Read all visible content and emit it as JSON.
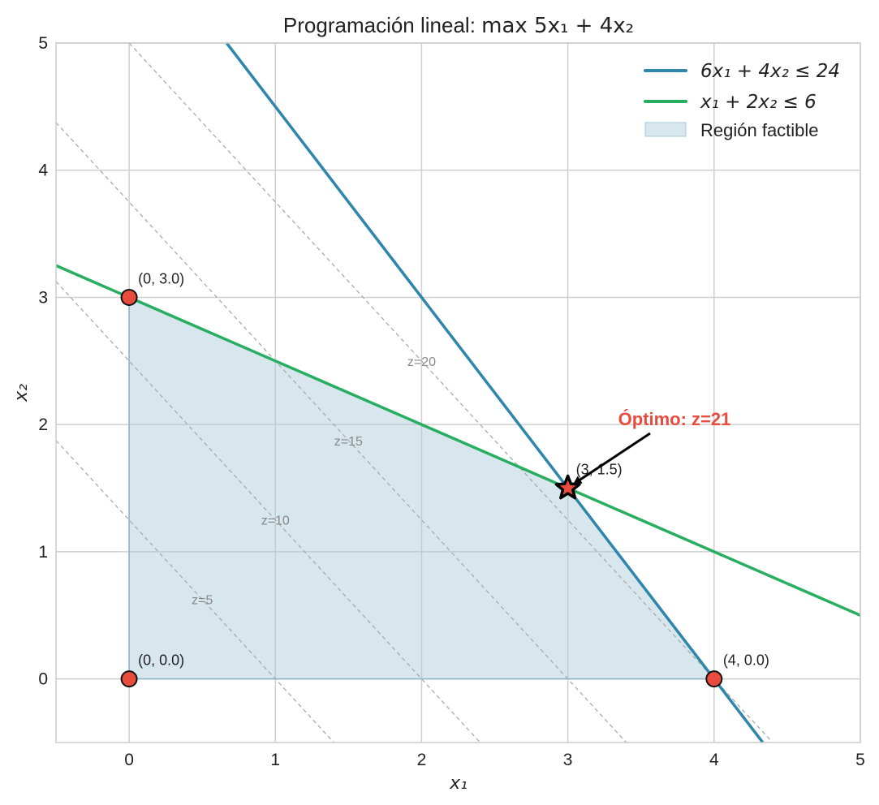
{
  "chart_data": {
    "type": "line",
    "title_prefix": "Programación lineal: ",
    "title_math": "max 5x₁ + 4x₂",
    "xlabel": "x₁",
    "ylabel": "x₂",
    "xlim": [
      -0.5,
      5
    ],
    "ylim": [
      -0.5,
      5
    ],
    "xticks": [
      0,
      1,
      2,
      3,
      4,
      5
    ],
    "yticks": [
      0,
      1,
      2,
      3,
      4,
      5
    ],
    "grid": true,
    "legend_position": "top-right",
    "series": [
      {
        "name": "6x₁ + 4x₂ ≤ 24",
        "kind": "constraint",
        "a": 6,
        "b": 4,
        "c": 24,
        "color": "#2e86ab"
      },
      {
        "name": "x₁ + 2x₂ ≤ 6",
        "kind": "constraint",
        "a": 1,
        "b": 2,
        "c": 6,
        "color": "#27ae60"
      }
    ],
    "feasible_region": {
      "name": "Región factible",
      "vertices": [
        [
          0,
          0
        ],
        [
          0,
          3
        ],
        [
          3,
          1.5
        ],
        [
          4,
          0
        ]
      ],
      "color": "#a8c8da"
    },
    "iso_lines": [
      {
        "z": 5,
        "label": "z=5"
      },
      {
        "z": 10,
        "label": "z=10"
      },
      {
        "z": 15,
        "label": "z=15"
      },
      {
        "z": 20,
        "label": "z=20"
      }
    ],
    "objective": {
      "a": 5,
      "b": 4
    },
    "vertices": [
      {
        "x": 0,
        "y": 0,
        "label": "(0, 0.0)"
      },
      {
        "x": 0,
        "y": 3,
        "label": "(0, 3.0)"
      },
      {
        "x": 4,
        "y": 0,
        "label": "(4, 0.0)"
      }
    ],
    "optimum": {
      "x": 3,
      "y": 1.5,
      "label": "(3, 1.5)",
      "annotation": "Óptimo: z=21",
      "color": "#e74c3c"
    }
  }
}
